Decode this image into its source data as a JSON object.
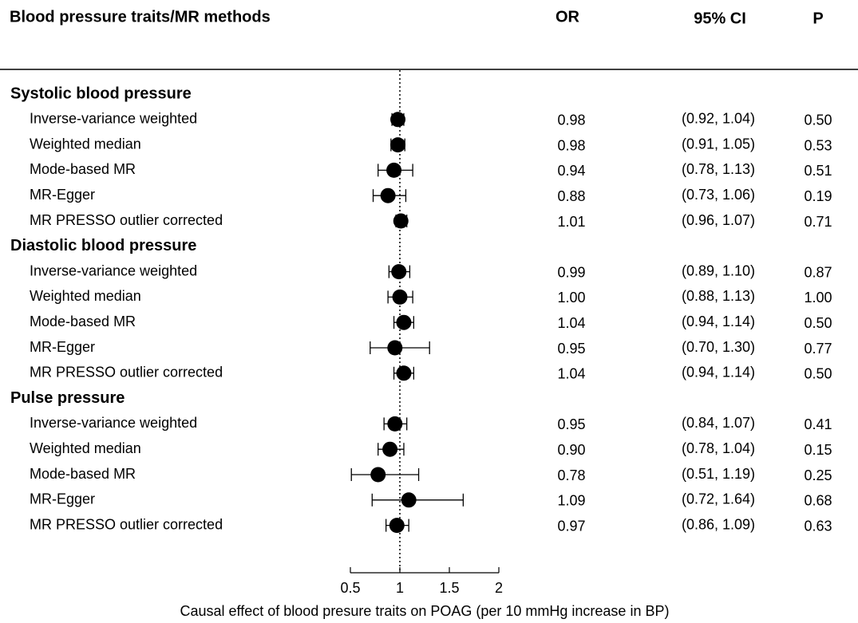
{
  "chart_data": {
    "type": "forest",
    "headers": {
      "label": "Blood pressure traits/MR methods",
      "or": "OR",
      "ci": "95% CI",
      "p": "P"
    },
    "xlabel": "Causal effect of blood presure traits on POAG (per 10 mmHg increase in BP)",
    "xlim": [
      0.5,
      2
    ],
    "xticks": [
      0.5,
      1,
      1.5,
      2
    ],
    "reference": 1,
    "groups": [
      {
        "name": "Systolic blood pressure",
        "rows": [
          {
            "method": "Inverse-variance weighted",
            "or": 0.98,
            "or_label": "0.98",
            "lo": 0.92,
            "hi": 1.04,
            "ci_label": "(0.92, 1.04)",
            "p": "0.50"
          },
          {
            "method": "Weighted median",
            "or": 0.98,
            "or_label": "0.98",
            "lo": 0.91,
            "hi": 1.05,
            "ci_label": "(0.91, 1.05)",
            "p": "0.53"
          },
          {
            "method": "Mode-based MR",
            "or": 0.94,
            "or_label": "0.94",
            "lo": 0.78,
            "hi": 1.13,
            "ci_label": "(0.78, 1.13)",
            "p": "0.51"
          },
          {
            "method": "MR-Egger",
            "or": 0.88,
            "or_label": "0.88",
            "lo": 0.73,
            "hi": 1.06,
            "ci_label": "(0.73, 1.06)",
            "p": "0.19"
          },
          {
            "method": "MR PRESSO outlier corrected",
            "or": 1.01,
            "or_label": "1.01",
            "lo": 0.96,
            "hi": 1.07,
            "ci_label": "(0.96, 1.07)",
            "p": "0.71"
          }
        ]
      },
      {
        "name": "Diastolic blood pressure",
        "rows": [
          {
            "method": "Inverse-variance weighted",
            "or": 0.99,
            "or_label": "0.99",
            "lo": 0.89,
            "hi": 1.1,
            "ci_label": "(0.89, 1.10)",
            "p": "0.87"
          },
          {
            "method": "Weighted median",
            "or": 1.0,
            "or_label": "1.00",
            "lo": 0.88,
            "hi": 1.13,
            "ci_label": "(0.88, 1.13)",
            "p": "1.00"
          },
          {
            "method": "Mode-based MR",
            "or": 1.04,
            "or_label": "1.04",
            "lo": 0.94,
            "hi": 1.14,
            "ci_label": "(0.94, 1.14)",
            "p": "0.50"
          },
          {
            "method": "MR-Egger",
            "or": 0.95,
            "or_label": "0.95",
            "lo": 0.7,
            "hi": 1.3,
            "ci_label": "(0.70, 1.30)",
            "p": "0.77"
          },
          {
            "method": "MR PRESSO outlier corrected",
            "or": 1.04,
            "or_label": "1.04",
            "lo": 0.94,
            "hi": 1.14,
            "ci_label": "(0.94, 1.14)",
            "p": "0.50"
          }
        ]
      },
      {
        "name": "Pulse pressure",
        "rows": [
          {
            "method": "Inverse-variance weighted",
            "or": 0.95,
            "or_label": "0.95",
            "lo": 0.84,
            "hi": 1.07,
            "ci_label": "(0.84, 1.07)",
            "p": "0.41"
          },
          {
            "method": "Weighted median",
            "or": 0.9,
            "or_label": "0.90",
            "lo": 0.78,
            "hi": 1.04,
            "ci_label": "(0.78, 1.04)",
            "p": "0.15"
          },
          {
            "method": "Mode-based MR",
            "or": 0.78,
            "or_label": "0.78",
            "lo": 0.51,
            "hi": 1.19,
            "ci_label": "(0.51, 1.19)",
            "p": "0.25"
          },
          {
            "method": "MR-Egger",
            "or": 1.09,
            "or_label": "1.09",
            "lo": 0.72,
            "hi": 1.64,
            "ci_label": "(0.72, 1.64)",
            "p": "0.68"
          },
          {
            "method": "MR PRESSO outlier corrected",
            "or": 0.97,
            "or_label": "0.97",
            "lo": 0.86,
            "hi": 1.09,
            "ci_label": "(0.86, 1.09)",
            "p": "0.63"
          }
        ]
      }
    ]
  }
}
